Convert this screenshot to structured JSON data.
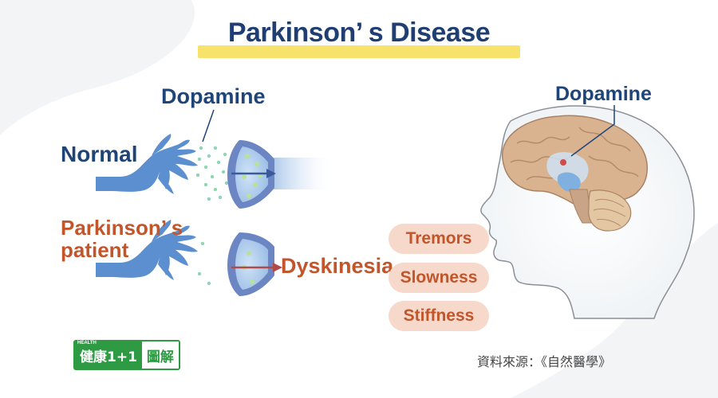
{
  "title": "Parkinson’ s Disease",
  "labels": {
    "normal": "Normal",
    "patient_line1": "Parkinson’ s",
    "patient_line2": "patient",
    "dopamine_left": "Dopamine",
    "dopamine_right": "Dopamine",
    "dyskinesia": "Dyskinesia"
  },
  "symptoms": [
    "Tremors",
    "Slowness",
    "Stiffness"
  ],
  "source": "資料來源：《自然醫學》",
  "logo": {
    "health": "HEALTH",
    "left": "健康1+1",
    "right": "圖解"
  },
  "colors": {
    "title": "#1f3f73",
    "title_highlight": "#f7e36b",
    "neuron": "#5b8fcf",
    "dopamine_dot": "#8fd4b3",
    "patient_text": "#c2552a",
    "symptom_pill": "#f6d9cb",
    "logo_green": "#2e9a43"
  }
}
